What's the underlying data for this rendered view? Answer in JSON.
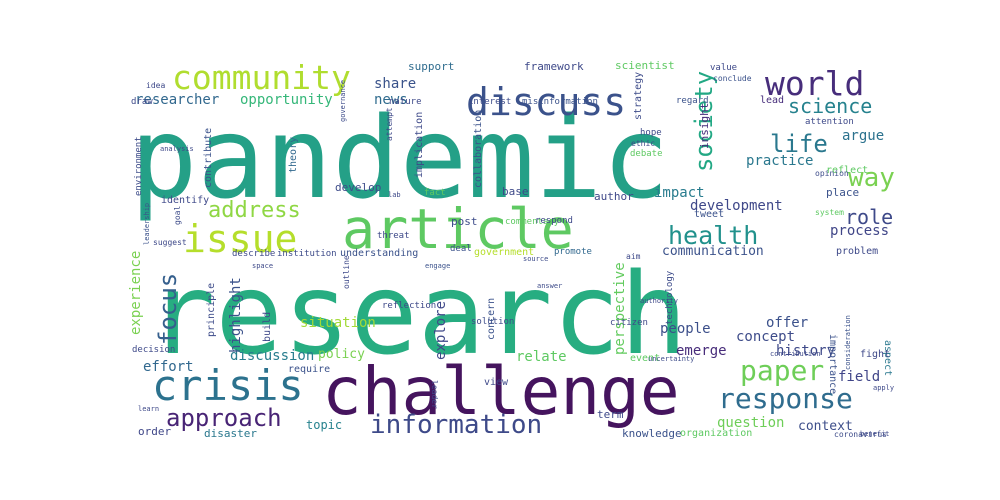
{
  "words": [
    {
      "text": "pandemic",
      "color": "#24a087"
    },
    {
      "text": "research",
      "color": "#27ad81"
    },
    {
      "text": "challenge",
      "color": "#45145e"
    },
    {
      "text": "article",
      "color": "#5ec962"
    },
    {
      "text": "crisis",
      "color": "#2c728e"
    },
    {
      "text": "issue",
      "color": "#b5de2b"
    },
    {
      "text": "discuss",
      "color": "#3b528b"
    },
    {
      "text": "community",
      "color": "#b0dd2f"
    },
    {
      "text": "world",
      "color": "#472d7b"
    },
    {
      "text": "paper",
      "color": "#6ece58"
    },
    {
      "text": "response",
      "color": "#2f6c8e"
    },
    {
      "text": "information",
      "color": "#3e4a89"
    },
    {
      "text": "approach",
      "color": "#482475"
    },
    {
      "text": "health",
      "color": "#21918c"
    },
    {
      "text": "way",
      "color": "#7ad151"
    },
    {
      "text": "life",
      "color": "#2a788e"
    },
    {
      "text": "society",
      "color": "#22a884"
    },
    {
      "text": "focus",
      "color": "#355f8d"
    },
    {
      "text": "address",
      "color": "#8fd744"
    },
    {
      "text": "science",
      "color": "#26828e"
    },
    {
      "text": "role",
      "color": "#3e4989"
    },
    {
      "text": "researcher",
      "color": "#31688e"
    },
    {
      "text": "opportunity",
      "color": "#35b779"
    },
    {
      "text": "practice",
      "color": "#2a788e"
    },
    {
      "text": "argue",
      "color": "#2c728e"
    },
    {
      "text": "news",
      "color": "#2f6b8e"
    },
    {
      "text": "share",
      "color": "#3a538b"
    },
    {
      "text": "development",
      "color": "#3f4889"
    },
    {
      "text": "impact",
      "color": "#287c8e"
    },
    {
      "text": "communication",
      "color": "#3b528b"
    },
    {
      "text": "process",
      "color": "#404688"
    },
    {
      "text": "experience",
      "color": "#7ad151"
    },
    {
      "text": "situation",
      "color": "#a2da37"
    },
    {
      "text": "perspective",
      "color": "#63cb5f"
    },
    {
      "text": "offer",
      "color": "#3b518b"
    },
    {
      "text": "concept",
      "color": "#3e4c8a"
    },
    {
      "text": "history",
      "color": "#3e4989"
    },
    {
      "text": "people",
      "color": "#3c4f8a"
    },
    {
      "text": "emerge",
      "color": "#472c7a"
    },
    {
      "text": "effort",
      "color": "#31688e"
    },
    {
      "text": "discussion",
      "color": "#287d8e"
    },
    {
      "text": "policy",
      "color": "#7ad151"
    },
    {
      "text": "relate",
      "color": "#5ec962"
    },
    {
      "text": "explore",
      "color": "#3f4889"
    },
    {
      "text": "highlight",
      "color": "#3b528b"
    },
    {
      "text": "field",
      "color": "#404588"
    },
    {
      "text": "question",
      "color": "#6ece58"
    },
    {
      "text": "context",
      "color": "#3d4e8a"
    },
    {
      "text": "topic",
      "color": "#26828e"
    },
    {
      "text": "knowledge",
      "color": "#3b528b"
    },
    {
      "text": "disaster",
      "color": "#2a788e"
    },
    {
      "text": "order",
      "color": "#3f4788"
    },
    {
      "text": "term",
      "color": "#3e4989"
    },
    {
      "text": "organization",
      "color": "#5ec962"
    },
    {
      "text": "insight",
      "color": "#472d7b"
    },
    {
      "text": "strategy",
      "color": "#3e4c8a"
    },
    {
      "text": "understanding",
      "color": "#3b528b"
    },
    {
      "text": "support",
      "color": "#2f6c8e"
    },
    {
      "text": "framework",
      "color": "#3e4989"
    },
    {
      "text": "scientist",
      "color": "#5ec962"
    },
    {
      "text": "value",
      "color": "#3e4989"
    },
    {
      "text": "conclude",
      "color": "#3b528b"
    },
    {
      "text": "lead",
      "color": "#472d7b"
    },
    {
      "text": "draw",
      "color": "#3e4989"
    },
    {
      "text": "theory",
      "color": "#31688e"
    },
    {
      "text": "develop",
      "color": "#3e4c8a"
    },
    {
      "text": "author",
      "color": "#3f4889"
    },
    {
      "text": "tweet",
      "color": "#3b528b"
    },
    {
      "text": "base",
      "color": "#3e4989"
    },
    {
      "text": "post",
      "color": "#3e4c8a"
    },
    {
      "text": "identify",
      "color": "#3e4989"
    },
    {
      "text": "contribute",
      "color": "#3b528b"
    },
    {
      "text": "government",
      "color": "#b5de2b"
    },
    {
      "text": "promote",
      "color": "#31688e"
    },
    {
      "text": "reflect",
      "color": "#5ec962"
    },
    {
      "text": "place",
      "color": "#3b528b"
    },
    {
      "text": "problem",
      "color": "#3e4989"
    },
    {
      "text": "aspect",
      "color": "#2a788e"
    },
    {
      "text": "importance",
      "color": "#3b528b"
    },
    {
      "text": "fight",
      "color": "#3e4989"
    },
    {
      "text": "build",
      "color": "#3e4989"
    },
    {
      "text": "principle",
      "color": "#3e4c8a"
    },
    {
      "text": "decision",
      "color": "#3e4989"
    },
    {
      "text": "require",
      "color": "#3b528b"
    },
    {
      "text": "view",
      "color": "#3e4989"
    },
    {
      "text": "event",
      "color": "#5ec962"
    },
    {
      "text": "solution",
      "color": "#3e4c8a"
    },
    {
      "text": "reflection",
      "color": "#3e4989"
    },
    {
      "text": "concern",
      "color": "#3b528b"
    },
    {
      "text": "citizen",
      "color": "#3e4989"
    },
    {
      "text": "technology",
      "color": "#3e4c8a"
    },
    {
      "text": "collaboration",
      "color": "#3b528b"
    },
    {
      "text": "implication",
      "color": "#3e4989"
    },
    {
      "text": "commentary",
      "color": "#5ec962"
    },
    {
      "text": "respond",
      "color": "#3e4989"
    },
    {
      "text": "interest",
      "color": "#3e4c8a"
    },
    {
      "text": "misinformation",
      "color": "#3b528b"
    },
    {
      "text": "nature",
      "color": "#3e4989"
    },
    {
      "text": "environment",
      "color": "#3e4c8a"
    },
    {
      "text": "threat",
      "color": "#3e4989"
    },
    {
      "text": "regard",
      "color": "#3b528b"
    },
    {
      "text": "attention",
      "color": "#3e4989"
    },
    {
      "text": "opinion",
      "color": "#3e4c8a"
    },
    {
      "text": "debate",
      "color": "#5ec962"
    },
    {
      "text": "describe",
      "color": "#3e4989"
    },
    {
      "text": "institution",
      "color": "#3e4c8a"
    },
    {
      "text": "outline",
      "color": "#3e4989"
    },
    {
      "text": "deal",
      "color": "#3b528b"
    },
    {
      "text": "hope",
      "color": "#3e4989"
    },
    {
      "text": "ethic",
      "color": "#3e4c8a"
    },
    {
      "text": "aim",
      "color": "#3e4989"
    },
    {
      "text": "system",
      "color": "#5ec962"
    },
    {
      "text": "idea",
      "color": "#3e4989"
    },
    {
      "text": "fact",
      "color": "#5ec962"
    },
    {
      "text": "lab",
      "color": "#3e4989"
    },
    {
      "text": "goal",
      "color": "#3e4c8a"
    },
    {
      "text": "suggest",
      "color": "#3e4989"
    },
    {
      "text": "engage",
      "color": "#3b528b"
    },
    {
      "text": "attempt",
      "color": "#3e4989"
    },
    {
      "text": "governance",
      "color": "#3e4c8a"
    },
    {
      "text": "analysis",
      "color": "#3e4989"
    },
    {
      "text": "leadership",
      "color": "#3b528b"
    },
    {
      "text": "authority",
      "color": "#3e4989"
    },
    {
      "text": "uncertainty",
      "color": "#3e4c8a"
    },
    {
      "text": "contribution",
      "color": "#3e4989"
    },
    {
      "text": "consideration",
      "color": "#3b528b"
    },
    {
      "text": "coronavirus",
      "color": "#3e4c8a"
    },
    {
      "text": "benefit",
      "color": "#3e4989"
    },
    {
      "text": "leader",
      "color": "#3e4989"
    },
    {
      "text": "source",
      "color": "#3e4c8a"
    },
    {
      "text": "learn",
      "color": "#3e4989"
    },
    {
      "text": "space",
      "color": "#3e4989"
    },
    {
      "text": "answer",
      "color": "#3e4c8a"
    },
    {
      "text": "apply",
      "color": "#3e4989"
    }
  ]
}
